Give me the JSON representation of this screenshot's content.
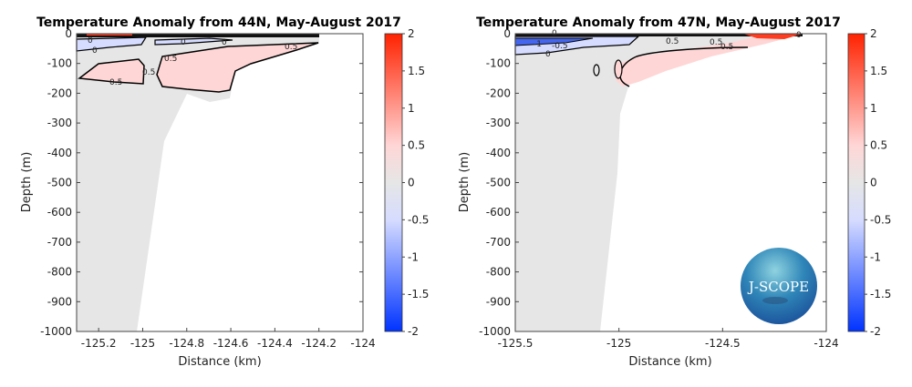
{
  "colors": {
    "positive_max": "#ff2200",
    "zero": "#e6e6e6",
    "negative_max": "#0033ff",
    "pink": "#ffd6d6",
    "light_blue": "#d6dcff"
  },
  "logo": {
    "text": "J-SCOPE"
  },
  "chart_data": [
    {
      "type": "heatmap",
      "subtype": "contour section",
      "title": "Temperature Anomaly from 44N, May-August 2017",
      "xlabel": "Distance (km)",
      "ylabel": "Depth (m)",
      "xlim": [
        -125.3,
        -124
      ],
      "ylim": [
        -1000,
        0
      ],
      "xticks": [
        "-125.2",
        "-125",
        "-124.8",
        "-124.6",
        "-124.4",
        "-124.2",
        "-124"
      ],
      "yticks": [
        "0",
        "-100",
        "-200",
        "-300",
        "-400",
        "-500",
        "-600",
        "-700",
        "-800",
        "-900",
        "-1000"
      ],
      "contour_labels": [
        "0",
        "0",
        "0",
        "0",
        "0.5",
        "0.5",
        "0.5",
        "0.5"
      ],
      "colorbar": {
        "range": [
          -2,
          2
        ],
        "ticks": [
          "2",
          "1.5",
          "1",
          "0.5",
          "0",
          "-0.5",
          "-1",
          "-1.5",
          "-2"
        ]
      }
    },
    {
      "type": "heatmap",
      "subtype": "contour section",
      "title": "Temperature Anomaly from 47N, May-August 2017",
      "xlabel": "Distance (km)",
      "ylabel": "Depth (m)",
      "xlim": [
        -125.5,
        -124
      ],
      "ylim": [
        -1000,
        0
      ],
      "xticks": [
        "-125.5",
        "-125",
        "-124.5",
        "-124"
      ],
      "yticks": [
        "0",
        "-100",
        "-200",
        "-300",
        "-400",
        "-500",
        "-600",
        "-700",
        "-800",
        "-900",
        "-1000"
      ],
      "contour_labels": [
        "0",
        "-1",
        "-0.5",
        "0",
        "0.5",
        "0.5",
        "0.5",
        "0"
      ],
      "colorbar": {
        "range": [
          -2,
          2
        ],
        "ticks": [
          "2",
          "1.5",
          "1",
          "0.5",
          "0",
          "-0.5",
          "-1",
          "-1.5",
          "-2"
        ]
      }
    }
  ]
}
